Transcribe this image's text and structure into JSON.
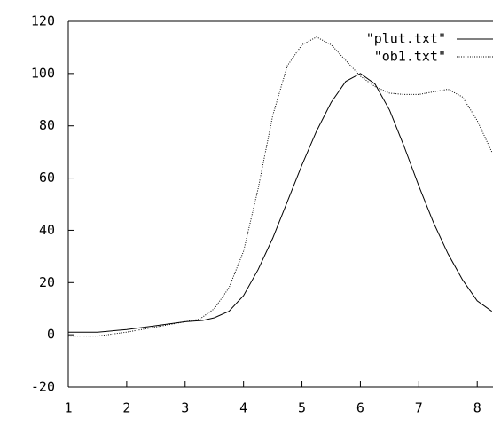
{
  "chart_data": {
    "type": "line",
    "xlim": [
      1,
      8.27
    ],
    "ylim": [
      -20,
      120
    ],
    "xticks": [
      1,
      2,
      3,
      4,
      5,
      6,
      7,
      8
    ],
    "yticks": [
      -20,
      0,
      20,
      40,
      60,
      80,
      100,
      120
    ],
    "legend": "top-right",
    "series": [
      {
        "name": "\"plut.txt\"",
        "color": "#000000",
        "style": "solid",
        "x": [
          1,
          1.5,
          2,
          2.5,
          3,
          3.3,
          3.5,
          3.75,
          4,
          4.25,
          4.5,
          4.75,
          5,
          5.25,
          5.5,
          5.75,
          6,
          6.25,
          6.5,
          6.75,
          7,
          7.25,
          7.5,
          7.75,
          8,
          8.25
        ],
        "values": [
          1,
          1,
          2,
          3.5,
          5,
          5.5,
          6.5,
          9,
          15,
          25,
          37,
          51,
          65,
          78,
          89,
          97,
          100,
          96,
          86,
          72,
          57,
          43,
          31,
          21,
          13,
          9
        ]
      },
      {
        "name": "\"ob1.txt\"",
        "color": "#000000",
        "style": "dotted",
        "x": [
          1,
          1.5,
          2,
          2.5,
          3,
          3.25,
          3.5,
          3.75,
          4,
          4.25,
          4.5,
          4.75,
          5,
          5.25,
          5.5,
          5.75,
          6,
          6.25,
          6.5,
          6.75,
          7,
          7.25,
          7.5,
          7.75,
          8,
          8.25
        ],
        "values": [
          -0.5,
          -0.5,
          1,
          3,
          5,
          6,
          10,
          18,
          32,
          56,
          84,
          103,
          111,
          114,
          111,
          105,
          99,
          95,
          92.5,
          92,
          92,
          93,
          94,
          91,
          82,
          70
        ]
      }
    ]
  }
}
